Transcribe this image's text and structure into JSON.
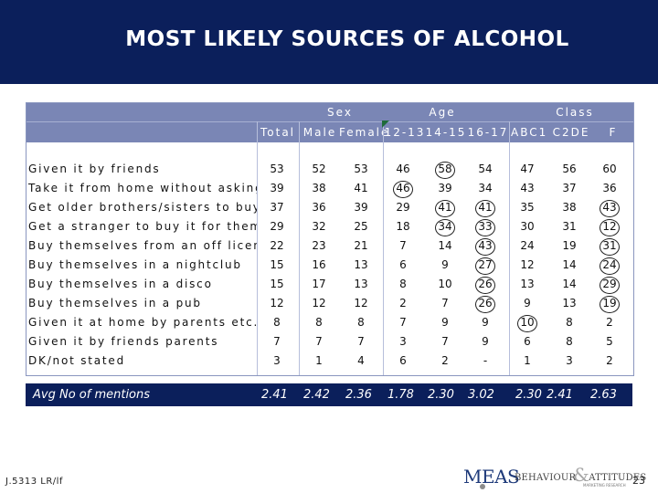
{
  "title": "MOST LIKELY SOURCES OF ALCOHOL",
  "header": {
    "groups": [
      "Sex",
      "Age",
      "Class"
    ],
    "columns": [
      "Total",
      "Male",
      "Female",
      "12-13",
      "14-15",
      "16-17",
      "ABC1",
      "C2DE",
      "F"
    ]
  },
  "rows": [
    {
      "label": "Given it by friends",
      "values": [
        "53",
        "52",
        "53",
        "46",
        "58",
        "54",
        "47",
        "56",
        "60"
      ]
    },
    {
      "label": "Take it from home without asking",
      "values": [
        "39",
        "38",
        "41",
        "46",
        "39",
        "34",
        "43",
        "37",
        "36"
      ]
    },
    {
      "label": "Get older brothers/sisters to buy for them",
      "values": [
        "37",
        "36",
        "39",
        "29",
        "41",
        "41",
        "35",
        "38",
        "43"
      ]
    },
    {
      "label": "Get a stranger to buy it for them",
      "values": [
        "29",
        "32",
        "25",
        "18",
        "34",
        "33",
        "30",
        "31",
        "12"
      ]
    },
    {
      "label": "Buy themselves from an off license",
      "values": [
        "22",
        "23",
        "21",
        "7",
        "14",
        "43",
        "24",
        "19",
        "31"
      ]
    },
    {
      "label": "Buy themselves in a nightclub",
      "values": [
        "15",
        "16",
        "13",
        "6",
        "9",
        "27",
        "12",
        "14",
        "24"
      ]
    },
    {
      "label": "Buy themselves in a disco",
      "values": [
        "15",
        "17",
        "13",
        "8",
        "10",
        "26",
        "13",
        "14",
        "29"
      ]
    },
    {
      "label": "Buy themselves in a pub",
      "values": [
        "12",
        "12",
        "12",
        "2",
        "7",
        "26",
        "9",
        "13",
        "19"
      ]
    },
    {
      "label": "Given it at home by parents etc.",
      "values": [
        "8",
        "8",
        "8",
        "7",
        "9",
        "9",
        "10",
        "8",
        "2"
      ]
    },
    {
      "label": "Given it by friends parents",
      "values": [
        "7",
        "7",
        "7",
        "3",
        "7",
        "9",
        "6",
        "8",
        "5"
      ]
    },
    {
      "label": "DK/not stated",
      "values": [
        "3",
        "1",
        "4",
        "6",
        "2",
        "-",
        "1",
        "3",
        "2"
      ]
    }
  ],
  "avg": {
    "label": "Avg No of mentions",
    "values": [
      "2.41",
      "2.42",
      "2.36",
      "1.78",
      "2.30",
      "3.02",
      "2.30",
      "2.41",
      "2.63"
    ]
  },
  "footer": {
    "reference": "J.5313 LR/lf",
    "page_number": "23",
    "logo_left": "MEAS",
    "logo_right_a": "BEHAVIOUR",
    "logo_right_b": "ATTITUDES",
    "logo_amp": "&",
    "logo_sub": "MARKETING RESEARCH"
  },
  "colors": {
    "title_bar": "#0b1f5b",
    "table_header": "#7a86b5"
  }
}
